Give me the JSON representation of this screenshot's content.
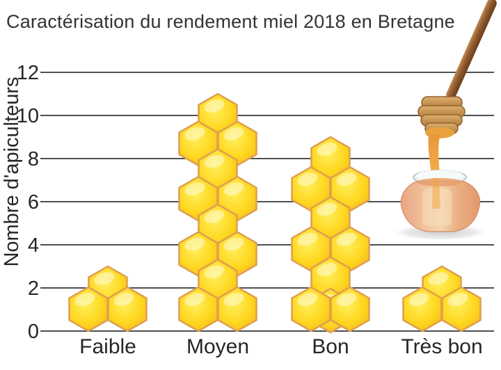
{
  "title": "Caractérisation du rendement miel 2018 en Bretagne",
  "chart_data": {
    "type": "bar",
    "variant": "pictogram-honeycomb",
    "title": "Caractérisation du rendement miel 2018 en Bretagne",
    "ylabel": "Nombre d'apiculteurs",
    "xlabel": "",
    "categories": [
      "Faible",
      "Moyen",
      "Bon",
      "Très bon"
    ],
    "values": [
      3,
      11,
      9,
      3
    ],
    "yticks": [
      0,
      2,
      4,
      6,
      8,
      10,
      12
    ],
    "ylim": [
      0,
      12
    ],
    "grid": "horizontal",
    "legend": "none",
    "pictogram": {
      "symbol": "honeycomb-hexagon",
      "hex_rows": [
        2,
        8,
        7,
        2
      ],
      "hex_counts": [
        3,
        12,
        10,
        3
      ]
    },
    "decoration": "honey-jar-with-dipper",
    "colors": {
      "hex_fill": "#FFD820",
      "hex_fill_light": "#FFF061",
      "hex_fill_deep": "#F5B41C",
      "hex_border": "#DFA050",
      "gridline": "#4f4f4f",
      "text": "#262626",
      "honey": "#EFA43C",
      "wood": "#9C6239",
      "jar_body": "#EDAE8C",
      "jar_lid": "#E9F0F2",
      "background": "#FFFFFF"
    }
  }
}
